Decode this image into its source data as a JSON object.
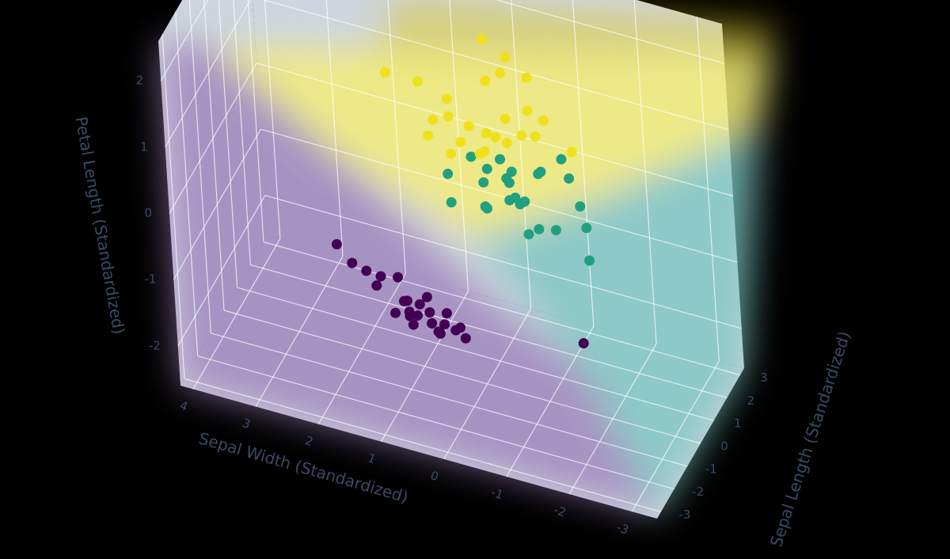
{
  "chart_data": {
    "type": "scatter3d",
    "xlabel": "Sepal Width (Standardized)",
    "ylabel": "Sepal Length (Standardized)",
    "zlabel": "Petal Length (Standardized)",
    "xlim": [
      -3.4,
      4.2
    ],
    "ylim": [
      -3.3,
      3.3
    ],
    "zlim": [
      -2.6,
      2.6
    ],
    "xticks": [
      4,
      3,
      2,
      1,
      0,
      -1,
      -2,
      -3
    ],
    "yticks": [
      -3,
      -2,
      -1,
      0,
      1,
      2,
      3
    ],
    "zticks": [
      -2,
      -1,
      0,
      1,
      2
    ],
    "grid": true,
    "series": [
      {
        "color": "#440154",
        "x": [
          1.0,
          0.8,
          1.5,
          0.3,
          0.6,
          1.2,
          2.0,
          0.9,
          0.1,
          0.5,
          1.8,
          0.7,
          1.1,
          0.4,
          2.3,
          0.8,
          1.3,
          0.0,
          0.6,
          1.6,
          -0.1,
          1.0,
          0.3,
          0.9,
          -1.7
        ],
        "y": [
          -0.9,
          -1.1,
          -0.5,
          -1.4,
          -1.0,
          -0.6,
          -0.3,
          -1.2,
          -1.5,
          -1.0,
          -0.2,
          -0.8,
          -0.7,
          -1.3,
          0.0,
          -0.9,
          -0.5,
          -1.6,
          -1.1,
          -0.4,
          -1.7,
          -0.8,
          -1.2,
          -1.0,
          -0.4
        ],
        "z": [
          -1.3,
          -1.4,
          -1.2,
          -1.3,
          -1.5,
          -1.1,
          -1.2,
          -1.4,
          -1.3,
          -1.6,
          -1.3,
          -1.2,
          -1.4,
          -1.5,
          -1.1,
          -1.3,
          -1.7,
          -1.2,
          -1.3,
          -1.4,
          -1.3,
          -1.5,
          -1.2,
          -1.6,
          -1.4
        ]
      },
      {
        "color": "#21a080",
        "x": [
          -0.6,
          -0.1,
          -1.3,
          -0.4,
          -0.9,
          0.3,
          -1.7,
          -0.6,
          -0.2,
          -1.0,
          0.1,
          -0.8,
          -1.5,
          -0.3,
          -0.5,
          -2.0,
          -0.7,
          0.4,
          -1.1,
          -0.4,
          -0.9,
          -0.1,
          -1.3,
          -0.6,
          -0.2
        ],
        "y": [
          0.2,
          0.5,
          -0.1,
          0.9,
          0.6,
          -0.4,
          0.3,
          -0.2,
          1.0,
          0.0,
          0.3,
          1.2,
          0.8,
          -0.5,
          0.1,
          -0.9,
          0.4,
          -0.1,
          1.4,
          0.7,
          -0.3,
          0.2,
          1.0,
          0.5,
          -0.2
        ],
        "z": [
          0.3,
          0.5,
          0.1,
          0.4,
          0.6,
          0.2,
          0.1,
          0.4,
          0.5,
          0.0,
          0.7,
          0.4,
          0.2,
          0.3,
          0.6,
          0.1,
          0.2,
          0.5,
          0.6,
          0.3,
          0.0,
          0.4,
          0.5,
          0.1,
          0.2
        ]
      },
      {
        "color": "#f0e01c",
        "x": [
          -0.1,
          0.8,
          -0.6,
          0.3,
          -0.1,
          -0.8,
          1.2,
          0.4,
          -0.4,
          -0.1,
          0.6,
          -1.3,
          0.0,
          0.3,
          -0.6,
          1.6,
          -0.1,
          0.5,
          -0.9,
          0.1,
          -0.2,
          0.8,
          -0.5,
          0.2,
          -0.3
        ],
        "y": [
          0.6,
          0.8,
          1.4,
          0.5,
          2.2,
          1.0,
          1.6,
          0.2,
          0.7,
          1.8,
          1.0,
          1.3,
          0.5,
          2.4,
          0.9,
          1.1,
          0.4,
          0.6,
          1.2,
          1.6,
          0.8,
          0.4,
          1.9,
          0.7,
          1.1
        ],
        "z": [
          1.0,
          0.9,
          1.2,
          0.8,
          1.6,
          1.0,
          1.1,
          0.7,
          0.9,
          1.5,
          1.2,
          0.8,
          0.7,
          1.7,
          1.0,
          1.3,
          0.8,
          1.1,
          1.2,
          1.4,
          0.9,
          0.8,
          1.5,
          1.0,
          1.1
        ]
      }
    ]
  }
}
